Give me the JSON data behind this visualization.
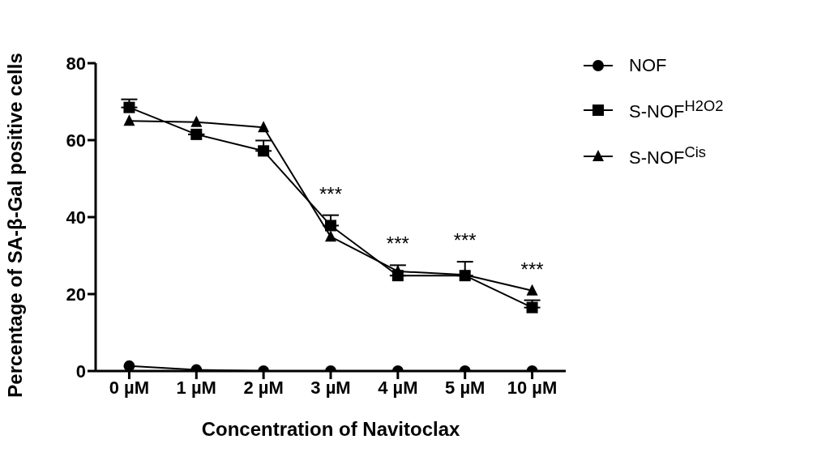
{
  "chart_data": {
    "type": "line",
    "xlabel": "Concentration of Navitoclax",
    "ylabel": "Percentage of SA-β-Gal positive cells",
    "categories": [
      "0 µM",
      "1 µM",
      "2 µM",
      "3 µM",
      "4 µM",
      "5 µM",
      "10 µM"
    ],
    "ylim": [
      0,
      80
    ],
    "yticks": [
      0,
      20,
      40,
      60,
      80
    ],
    "grid": false,
    "legend": "top right",
    "line_style": "solid",
    "series": [
      {
        "name": "NOF",
        "color": "#000000",
        "marker": "circle",
        "values": [
          1.3,
          0.3,
          0,
          0,
          0,
          0,
          0
        ]
      },
      {
        "name": "S-NOF$^{H2O2}$",
        "color": "#000000",
        "marker": "square",
        "values": [
          68.5,
          61.5,
          57.2,
          37.8,
          24.8,
          24.8,
          16.5
        ],
        "errors": [
          [
            68.5,
            70.6
          ],
          null,
          [
            57.2,
            59.9
          ],
          [
            37.8,
            40.5
          ],
          [
            24.8,
            27.5
          ],
          [
            24.8,
            28.4
          ],
          [
            16.5,
            18.4
          ]
        ]
      },
      {
        "name": "S-NOF$^{Cis}$",
        "color": "#000000",
        "marker": "triangle",
        "values": [
          65,
          64.7,
          63.3,
          34.9,
          25.9,
          25,
          20.9
        ]
      }
    ],
    "annotations": [
      "***",
      "***",
      "***",
      "***"
    ]
  }
}
